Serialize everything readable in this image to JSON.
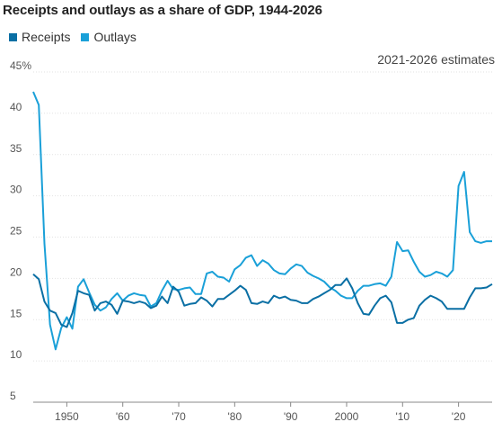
{
  "title": "Receipts and outlays as a share of GDP, 1944-2026",
  "note": "2021-2026 estimates",
  "colors": {
    "receipts": "#0a6fa4",
    "outlays": "#1aa0d8",
    "grid": "#e2e2e2",
    "axis": "#888888"
  },
  "chart_data": {
    "type": "line",
    "title": "Receipts and outlays as a share of GDP, 1944-2026",
    "xlabel": "",
    "ylabel": "",
    "xlim": [
      1944,
      2026
    ],
    "ylim": [
      5,
      45
    ],
    "ytick_labels": [
      "45%",
      "40",
      "35",
      "30",
      "25",
      "20",
      "15",
      "10",
      "5"
    ],
    "yticks": [
      45,
      40,
      35,
      30,
      25,
      20,
      15,
      10,
      5
    ],
    "xticks": [
      1950,
      1960,
      1970,
      1980,
      1990,
      2000,
      2010,
      2020
    ],
    "xtick_labels": [
      "1950",
      "'60",
      "'70",
      "'80",
      "'90",
      "2000",
      "'10",
      "'20"
    ],
    "legend_position": "top-left",
    "grid": true,
    "x": [
      1944,
      1945,
      1946,
      1947,
      1948,
      1949,
      1950,
      1951,
      1952,
      1953,
      1954,
      1955,
      1956,
      1957,
      1958,
      1959,
      1960,
      1961,
      1962,
      1963,
      1964,
      1965,
      1966,
      1967,
      1968,
      1969,
      1970,
      1971,
      1972,
      1973,
      1974,
      1975,
      1976,
      1977,
      1978,
      1979,
      1980,
      1981,
      1982,
      1983,
      1984,
      1985,
      1986,
      1987,
      1988,
      1989,
      1990,
      1991,
      1992,
      1993,
      1994,
      1995,
      1996,
      1997,
      1998,
      1999,
      2000,
      2001,
      2002,
      2003,
      2004,
      2005,
      2006,
      2007,
      2008,
      2009,
      2010,
      2011,
      2012,
      2013,
      2014,
      2015,
      2016,
      2017,
      2018,
      2019,
      2020,
      2021,
      2022,
      2023,
      2024,
      2025,
      2026
    ],
    "series": [
      {
        "name": "Receipts",
        "values": [
          20.5,
          19.9,
          17.2,
          16.1,
          15.8,
          14.4,
          14.1,
          15.8,
          18.5,
          18.2,
          18.0,
          16.1,
          17.0,
          17.2,
          16.8,
          15.7,
          17.3,
          17.2,
          17.0,
          17.2,
          17.0,
          16.4,
          16.7,
          17.8,
          17.0,
          19.0,
          18.4,
          16.7,
          16.9,
          17.0,
          17.7,
          17.3,
          16.6,
          17.5,
          17.5,
          18.0,
          18.5,
          19.1,
          18.6,
          17.0,
          16.9,
          17.2,
          17.0,
          17.9,
          17.6,
          17.8,
          17.4,
          17.3,
          17.0,
          17.0,
          17.5,
          17.8,
          18.2,
          18.6,
          19.2,
          19.2,
          20.0,
          18.8,
          17.0,
          15.7,
          15.6,
          16.7,
          17.6,
          17.9,
          17.1,
          14.6,
          14.6,
          15.0,
          15.2,
          16.7,
          17.4,
          17.9,
          17.6,
          17.2,
          16.3,
          16.3,
          16.3,
          16.3,
          17.7,
          18.8,
          18.8,
          18.9,
          19.3
        ]
      },
      {
        "name": "Outlays",
        "values": [
          42.6,
          41.0,
          24.2,
          14.4,
          11.4,
          14.0,
          15.3,
          13.9,
          19.0,
          19.9,
          18.3,
          16.8,
          16.1,
          16.5,
          17.5,
          18.2,
          17.3,
          17.9,
          18.2,
          18.0,
          17.9,
          16.6,
          17.0,
          18.5,
          19.7,
          18.7,
          18.6,
          18.8,
          18.9,
          18.1,
          18.1,
          20.6,
          20.8,
          20.2,
          20.1,
          19.6,
          21.1,
          21.6,
          22.5,
          22.8,
          21.5,
          22.2,
          21.8,
          21.0,
          20.6,
          20.5,
          21.2,
          21.7,
          21.5,
          20.7,
          20.3,
          20.0,
          19.6,
          18.9,
          18.5,
          17.9,
          17.6,
          17.6,
          18.5,
          19.1,
          19.1,
          19.3,
          19.4,
          19.1,
          20.2,
          24.4,
          23.3,
          23.4,
          22.0,
          20.8,
          20.2,
          20.4,
          20.8,
          20.6,
          20.2,
          21.0,
          31.2,
          32.9,
          25.6,
          24.5,
          24.3,
          24.5,
          24.5
        ]
      }
    ]
  }
}
